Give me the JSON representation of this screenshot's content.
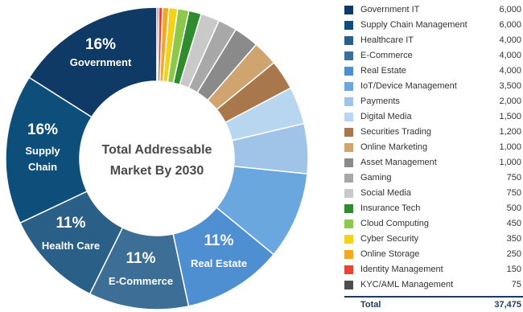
{
  "chart_data": {
    "type": "pie",
    "donut": true,
    "center_title": [
      "Total Addressable",
      "Market By 2030"
    ],
    "slices": [
      {
        "name": "Government IT",
        "value": 6000,
        "color": "#0f3a66"
      },
      {
        "name": "Supply Chain Management",
        "value": 6000,
        "color": "#0d4f7a"
      },
      {
        "name": "Healthcare IT",
        "value": 4000,
        "color": "#2a5f88"
      },
      {
        "name": "E-Commerce",
        "value": 4000,
        "color": "#3d6f96"
      },
      {
        "name": "Real Estate",
        "value": 4000,
        "color": "#4e8fd2"
      },
      {
        "name": "IoT/Device Management",
        "value": 3500,
        "color": "#6aa7de"
      },
      {
        "name": "Payments",
        "value": 2000,
        "color": "#9fc4e8"
      },
      {
        "name": "Digital  Media",
        "value": 1500,
        "color": "#b8d6f0"
      },
      {
        "name": "Securities Trading",
        "value": 1200,
        "color": "#a9774c"
      },
      {
        "name": "Online Marketing",
        "value": 1000,
        "color": "#d0a46f"
      },
      {
        "name": "Asset Management",
        "value": 1000,
        "color": "#8a8a8a"
      },
      {
        "name": "Gaming",
        "value": 750,
        "color": "#a8a8a8"
      },
      {
        "name": "Social Media",
        "value": 750,
        "color": "#c9c9c9"
      },
      {
        "name": "Insurance Tech",
        "value": 500,
        "color": "#2e8b2e"
      },
      {
        "name": "Cloud Computing",
        "value": 450,
        "color": "#8cc84b"
      },
      {
        "name": "Cyber Security",
        "value": 350,
        "color": "#f2d21b"
      },
      {
        "name": "Online Storage",
        "value": 250,
        "color": "#f5a623"
      },
      {
        "name": "Identity Management",
        "value": 150,
        "color": "#e8423a"
      },
      {
        "name": "KYC/AML Management",
        "value": 75,
        "color": "#4d4d4d"
      }
    ],
    "display_values": [
      "6,000",
      "6,000",
      "4,000",
      "4,000",
      "4,000",
      "3,500",
      "2,000",
      "1,500",
      "1,200",
      "1,000",
      "1,000",
      "750",
      "750",
      "500",
      "450",
      "350",
      "250",
      "150",
      "75"
    ],
    "slice_labels": [
      {
        "pct": "16%",
        "name": "Government"
      },
      {
        "pct": "16%",
        "name": "Supply\nChain"
      },
      {
        "pct": "11%",
        "name": "Health Care"
      },
      {
        "pct": "11%",
        "name": "E-Commerce"
      },
      {
        "pct": "11%",
        "name": "Real Estate"
      }
    ],
    "total_label": "Total",
    "total_value": "37,475"
  }
}
